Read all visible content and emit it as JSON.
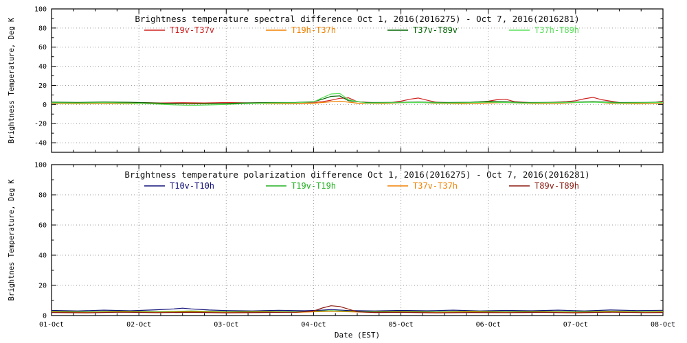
{
  "colors": {
    "axis": "#000000",
    "grid": "#9a9a9a",
    "title": "#111111",
    "background": "#ffffff"
  },
  "chart_data": [
    {
      "type": "line",
      "title": "Brightness temperature spectral difference",
      "date_range": "Oct  1, 2016(2016275) - Oct  7, 2016(2016281)",
      "ylabel": "Brightness Temperature, Deg K",
      "xlabel": "",
      "ylim": [
        -50,
        100
      ],
      "yticks": [
        -40,
        -20,
        0,
        20,
        40,
        60,
        80,
        100
      ],
      "xlim": [
        1,
        8
      ],
      "xticks": [
        1,
        2,
        3,
        4,
        5,
        6,
        7,
        8
      ],
      "xticklabels": [
        "01-Oct",
        "02-Oct",
        "03-Oct",
        "04-Oct",
        "05-Oct",
        "06-Oct",
        "07-Oct",
        "08-Oct"
      ],
      "show_xticklabels": false,
      "grid": "dotted",
      "legend_position": "top-inside",
      "series": [
        {
          "name": "T19v-T37v",
          "color": "#d02020",
          "x": [
            1.0,
            1.25,
            1.5,
            1.75,
            2.0,
            2.25,
            2.5,
            2.75,
            3.0,
            3.25,
            3.5,
            3.75,
            4.0,
            4.1,
            4.2,
            4.3,
            4.4,
            4.5,
            4.7,
            4.9,
            5.0,
            5.1,
            5.2,
            5.3,
            5.4,
            5.6,
            5.8,
            6.0,
            6.1,
            6.2,
            6.3,
            6.5,
            6.7,
            6.9,
            7.0,
            7.1,
            7.2,
            7.3,
            7.5,
            7.7,
            7.9,
            8.0
          ],
          "y": [
            2.0,
            1.6,
            2.1,
            1.7,
            2.0,
            1.6,
            1.9,
            1.6,
            2.0,
            1.7,
            1.9,
            1.6,
            2.2,
            3.0,
            4.5,
            6.5,
            7.0,
            3.0,
            1.8,
            2.2,
            3.5,
            5.5,
            6.8,
            4.5,
            2.5,
            1.8,
            2.0,
            3.5,
            5.0,
            5.5,
            3.0,
            1.8,
            2.2,
            3.0,
            4.0,
            6.0,
            7.5,
            5.0,
            2.0,
            1.6,
            2.0,
            3.5
          ]
        },
        {
          "name": "T19h-T37h",
          "color": "#f08000",
          "x": [
            1.0,
            1.3,
            1.6,
            1.9,
            2.2,
            2.5,
            2.8,
            3.1,
            3.4,
            3.7,
            4.0,
            4.2,
            4.3,
            4.5,
            4.8,
            5.0,
            5.2,
            5.4,
            5.7,
            6.0,
            6.2,
            6.5,
            6.8,
            7.0,
            7.2,
            7.4,
            7.7,
            8.0
          ],
          "y": [
            1.2,
            0.9,
            1.1,
            0.8,
            1.0,
            0.9,
            1.1,
            0.8,
            1.0,
            0.9,
            1.3,
            2.8,
            3.5,
            1.4,
            1.0,
            1.8,
            2.4,
            1.2,
            0.9,
            1.6,
            2.0,
            1.0,
            1.1,
            2.0,
            2.8,
            1.2,
            0.9,
            1.4
          ]
        },
        {
          "name": "T37v-T89v",
          "color": "#006400",
          "x": [
            1.0,
            1.3,
            1.6,
            1.9,
            2.2,
            2.4,
            2.6,
            2.8,
            3.0,
            3.2,
            3.5,
            3.8,
            4.0,
            4.1,
            4.2,
            4.3,
            4.4,
            4.6,
            4.9,
            5.2,
            5.5,
            5.8,
            6.0,
            6.2,
            6.4,
            6.7,
            7.0,
            7.2,
            7.5,
            7.8,
            8.0
          ],
          "y": [
            2.5,
            2.2,
            2.6,
            2.3,
            1.5,
            0.9,
            0.6,
            0.9,
            1.1,
            1.6,
            2.0,
            2.2,
            3.0,
            5.5,
            8.5,
            9.0,
            4.0,
            2.0,
            2.2,
            2.5,
            2.0,
            2.3,
            3.2,
            2.8,
            2.0,
            2.2,
            2.5,
            3.0,
            2.0,
            2.2,
            2.5
          ]
        },
        {
          "name": "T37h-T89h",
          "color": "#58e058",
          "x": [
            1.0,
            1.3,
            1.6,
            1.9,
            2.2,
            2.4,
            2.6,
            2.8,
            3.0,
            3.2,
            3.5,
            3.8,
            4.0,
            4.1,
            4.2,
            4.3,
            4.4,
            4.6,
            4.9,
            5.2,
            5.5,
            5.8,
            6.0,
            6.2,
            6.4,
            6.7,
            7.0,
            7.2,
            7.5,
            7.8,
            8.0
          ],
          "y": [
            1.8,
            1.5,
            1.9,
            1.4,
            0.5,
            -0.4,
            -1.0,
            -0.5,
            0.0,
            0.8,
            1.5,
            1.8,
            2.6,
            7.0,
            11.0,
            11.5,
            5.0,
            1.5,
            1.8,
            2.0,
            1.5,
            1.8,
            2.4,
            2.0,
            1.5,
            1.8,
            2.0,
            2.4,
            1.5,
            1.8,
            2.0
          ]
        }
      ]
    },
    {
      "type": "line",
      "title": "Brightness temperature polarization difference",
      "date_range": "Oct  1, 2016(2016275) - Oct  7, 2016(2016281)",
      "ylabel": "Brightnes Temperature, Deg K",
      "xlabel": "Date (EST)",
      "ylim": [
        0,
        100
      ],
      "yticks": [
        0,
        20,
        40,
        60,
        80,
        100
      ],
      "xlim": [
        1,
        8
      ],
      "xticks": [
        1,
        2,
        3,
        4,
        5,
        6,
        7,
        8
      ],
      "xticklabels": [
        "01-Oct",
        "02-Oct",
        "03-Oct",
        "04-Oct",
        "05-Oct",
        "06-Oct",
        "07-Oct",
        "08-Oct"
      ],
      "show_xticklabels": true,
      "grid": "dotted",
      "legend_position": "top-inside",
      "series": [
        {
          "name": "T10v-T10h",
          "color": "#10107a",
          "x": [
            1.0,
            1.3,
            1.6,
            1.9,
            2.2,
            2.4,
            2.5,
            2.6,
            2.8,
            3.0,
            3.3,
            3.6,
            3.9,
            4.1,
            4.2,
            4.4,
            4.7,
            5.0,
            5.3,
            5.6,
            5.9,
            6.2,
            6.5,
            6.8,
            7.1,
            7.4,
            7.7,
            8.0
          ],
          "y": [
            3.4,
            3.1,
            3.6,
            3.2,
            3.8,
            4.4,
            4.9,
            4.4,
            3.7,
            3.3,
            3.1,
            3.5,
            3.2,
            3.6,
            4.0,
            3.3,
            3.1,
            3.4,
            3.2,
            3.6,
            3.1,
            3.4,
            3.2,
            3.6,
            3.1,
            3.7,
            3.3,
            3.5
          ]
        },
        {
          "name": "T19v-T19h",
          "color": "#20b020",
          "x": [
            1.0,
            1.4,
            1.8,
            2.2,
            2.6,
            3.0,
            3.4,
            3.8,
            4.2,
            4.6,
            5.0,
            5.4,
            5.8,
            6.2,
            6.6,
            7.0,
            7.4,
            7.8,
            8.0
          ],
          "y": [
            2.8,
            2.5,
            2.9,
            2.6,
            3.0,
            2.6,
            2.8,
            2.5,
            3.2,
            2.6,
            2.8,
            2.5,
            2.9,
            2.6,
            2.8,
            2.5,
            2.9,
            2.6,
            2.8
          ]
        },
        {
          "name": "T37v-T37h",
          "color": "#f08000",
          "x": [
            1.0,
            1.4,
            1.8,
            2.2,
            2.6,
            3.0,
            3.4,
            3.8,
            4.2,
            4.6,
            5.0,
            5.4,
            5.8,
            6.2,
            6.6,
            7.0,
            7.4,
            7.8,
            8.0
          ],
          "y": [
            2.4,
            2.1,
            2.5,
            2.2,
            2.6,
            2.2,
            2.4,
            2.1,
            2.8,
            2.2,
            2.4,
            2.1,
            2.5,
            2.2,
            2.4,
            2.1,
            2.5,
            2.2,
            2.4
          ]
        },
        {
          "name": "T89v-T89h",
          "color": "#8b1a10",
          "x": [
            1.0,
            1.4,
            1.8,
            2.2,
            2.6,
            3.0,
            3.4,
            3.8,
            4.0,
            4.1,
            4.2,
            4.3,
            4.5,
            4.7,
            5.0,
            5.4,
            5.8,
            6.2,
            6.6,
            7.0,
            7.4,
            7.8,
            8.0
          ],
          "y": [
            2.0,
            1.8,
            2.2,
            1.9,
            2.1,
            1.8,
            2.0,
            2.2,
            3.0,
            5.0,
            6.5,
            6.0,
            2.5,
            2.0,
            2.1,
            1.8,
            2.0,
            1.9,
            2.1,
            1.8,
            2.2,
            1.9,
            2.0
          ]
        }
      ]
    }
  ]
}
